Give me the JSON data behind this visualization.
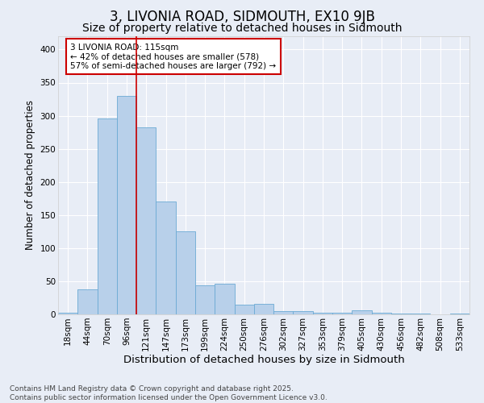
{
  "title": "3, LIVONIA ROAD, SIDMOUTH, EX10 9JB",
  "subtitle": "Size of property relative to detached houses in Sidmouth",
  "xlabel": "Distribution of detached houses by size in Sidmouth",
  "ylabel": "Number of detached properties",
  "categories": [
    "18sqm",
    "44sqm",
    "70sqm",
    "96sqm",
    "121sqm",
    "147sqm",
    "173sqm",
    "199sqm",
    "224sqm",
    "250sqm",
    "276sqm",
    "302sqm",
    "327sqm",
    "353sqm",
    "379sqm",
    "405sqm",
    "430sqm",
    "456sqm",
    "482sqm",
    "508sqm",
    "533sqm"
  ],
  "values": [
    3,
    38,
    296,
    330,
    283,
    171,
    125,
    44,
    46,
    15,
    16,
    5,
    5,
    2,
    2,
    6,
    2,
    1,
    1,
    0,
    1
  ],
  "bar_color": "#b8d0ea",
  "bar_edge_color": "#6baad4",
  "background_color": "#e8edf6",
  "grid_color": "#ffffff",
  "vline_index": 4,
  "vline_color": "#cc0000",
  "annotation_text": "3 LIVONIA ROAD: 115sqm\n← 42% of detached houses are smaller (578)\n57% of semi-detached houses are larger (792) →",
  "annotation_box_color": "#ffffff",
  "annotation_box_edge_color": "#cc0000",
  "footnote": "Contains HM Land Registry data © Crown copyright and database right 2025.\nContains public sector information licensed under the Open Government Licence v3.0.",
  "ylim": [
    0,
    420
  ],
  "yticks": [
    0,
    50,
    100,
    150,
    200,
    250,
    300,
    350,
    400
  ],
  "title_fontsize": 12,
  "subtitle_fontsize": 10,
  "xlabel_fontsize": 9.5,
  "ylabel_fontsize": 8.5,
  "tick_fontsize": 7.5,
  "annot_fontsize": 7.5,
  "footnote_fontsize": 6.5
}
